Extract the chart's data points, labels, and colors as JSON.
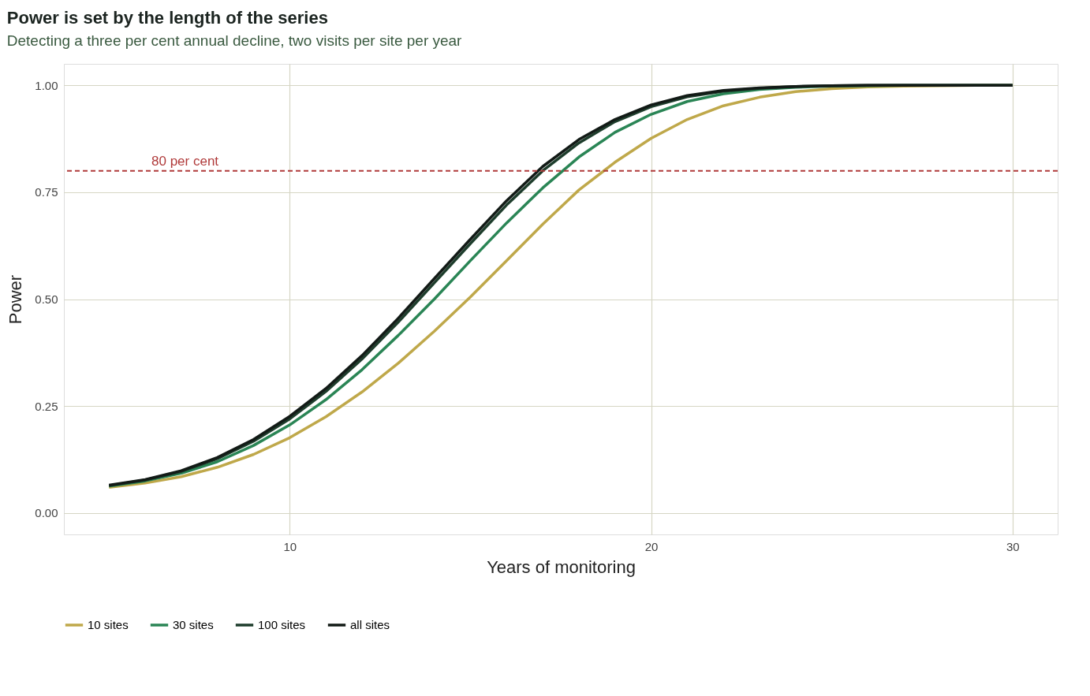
{
  "chart_data": {
    "type": "line",
    "title": "Power is set by the length of the series",
    "subtitle": "Detecting a three per cent annual decline, two visits per site per year",
    "xlabel": "Years of monitoring",
    "ylabel": "Power",
    "x": [
      5,
      6,
      7,
      8,
      9,
      10,
      11,
      12,
      13,
      14,
      15,
      16,
      17,
      18,
      19,
      20,
      21,
      22,
      23,
      24,
      25,
      26,
      27,
      28,
      29,
      30
    ],
    "series": [
      {
        "name": "10 sites",
        "color": "#bfa84a",
        "values": [
          0.06,
          0.07,
          0.085,
          0.107,
          0.137,
          0.176,
          0.225,
          0.283,
          0.35,
          0.425,
          0.505,
          0.59,
          0.675,
          0.755,
          0.82,
          0.876,
          0.92,
          0.952,
          0.972,
          0.985,
          0.992,
          0.996,
          0.998,
          0.999,
          1.0,
          1.0
        ]
      },
      {
        "name": "30 sites",
        "color": "#2a8555",
        "values": [
          0.063,
          0.075,
          0.093,
          0.12,
          0.158,
          0.206,
          0.265,
          0.335,
          0.415,
          0.5,
          0.59,
          0.678,
          0.76,
          0.832,
          0.89,
          0.932,
          0.962,
          0.98,
          0.99,
          0.995,
          0.998,
          0.999,
          1.0,
          1.0,
          1.0,
          1.0
        ]
      },
      {
        "name": "100 sites",
        "color": "#1e3d2c",
        "values": [
          0.064,
          0.077,
          0.097,
          0.127,
          0.168,
          0.22,
          0.284,
          0.36,
          0.446,
          0.538,
          0.63,
          0.72,
          0.8,
          0.865,
          0.915,
          0.95,
          0.973,
          0.986,
          0.993,
          0.997,
          0.999,
          1.0,
          1.0,
          1.0,
          1.0,
          1.0
        ]
      },
      {
        "name": "all sites",
        "color": "#121a16",
        "values": [
          0.065,
          0.078,
          0.099,
          0.13,
          0.172,
          0.226,
          0.291,
          0.368,
          0.455,
          0.548,
          0.64,
          0.73,
          0.81,
          0.873,
          0.92,
          0.954,
          0.976,
          0.988,
          0.994,
          0.997,
          0.999,
          1.0,
          1.0,
          1.0,
          1.0,
          1.0
        ]
      }
    ],
    "xlim": [
      3.75,
      31.25
    ],
    "xticks": [
      10,
      20,
      30
    ],
    "ylim": [
      -0.05,
      1.05
    ],
    "yticks": [
      {
        "value": 0,
        "label": "0.00"
      },
      {
        "value": 0.25,
        "label": "0.25"
      },
      {
        "value": 0.5,
        "label": "0.50"
      },
      {
        "value": 0.75,
        "label": "0.75"
      },
      {
        "value": 1,
        "label": "1.00"
      }
    ],
    "ref_lines": [
      {
        "axis": "y",
        "value": 0.8,
        "label": "80 per cent",
        "color": "#b03a3a",
        "line_style": "dashed"
      }
    ],
    "grid": true,
    "legend": "bottom",
    "marker": "none",
    "line_style": "solid"
  }
}
